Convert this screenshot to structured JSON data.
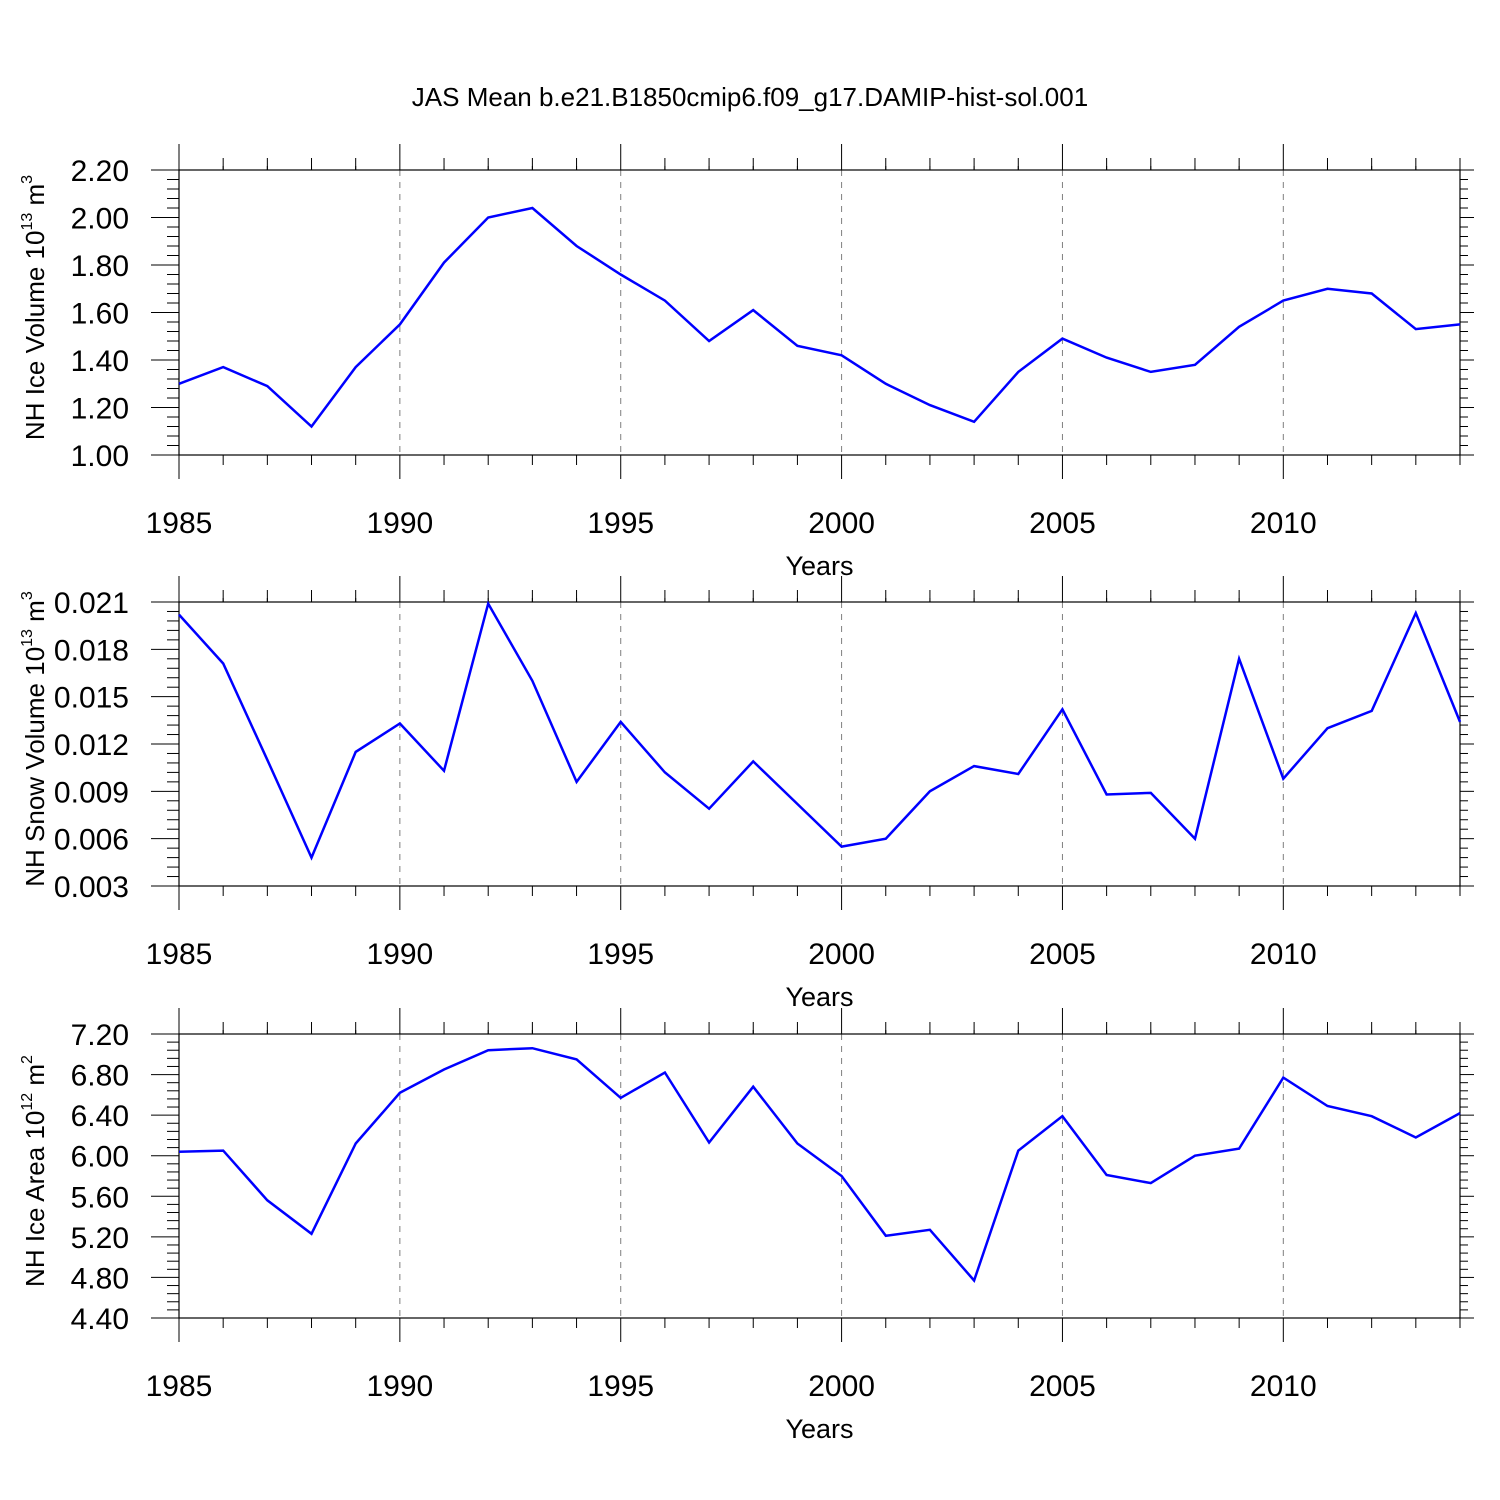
{
  "title": "JAS Mean b.e21.B1850cmip6.f09_g17.DAMIP-hist-sol.001",
  "line_color": "#0000ff",
  "chart_data": [
    {
      "type": "line",
      "title": "",
      "xlabel": "Years",
      "ylabel": {
        "main": "NH Ice Volume 10",
        "exp": "13",
        "unit": " m",
        "unit_exp": "3"
      },
      "xlim": [
        1985,
        2014
      ],
      "ylim": [
        1.0,
        2.2
      ],
      "xticks": [
        "1985",
        "1990",
        "1995",
        "2000",
        "2005",
        "2010"
      ],
      "yticks": [
        "1.00",
        "1.20",
        "1.40",
        "1.60",
        "1.80",
        "2.00",
        "2.20"
      ],
      "grid": "dashed vertical at major x ticks",
      "x": [
        1985,
        1986,
        1987,
        1988,
        1989,
        1990,
        1991,
        1992,
        1993,
        1994,
        1995,
        1996,
        1997,
        1998,
        1999,
        2000,
        2001,
        2002,
        2003,
        2004,
        2005,
        2006,
        2007,
        2008,
        2009,
        2010,
        2011,
        2012,
        2013,
        2014
      ],
      "series": [
        {
          "name": "NH Ice Volume",
          "values": [
            1.3,
            1.37,
            1.29,
            1.12,
            1.37,
            1.55,
            1.81,
            2.0,
            2.04,
            1.88,
            1.76,
            1.65,
            1.48,
            1.61,
            1.46,
            1.42,
            1.3,
            1.21,
            1.14,
            1.35,
            1.49,
            1.41,
            1.35,
            1.38,
            1.54,
            1.65,
            1.7,
            1.68,
            1.53,
            1.55
          ]
        }
      ]
    },
    {
      "type": "line",
      "title": "",
      "xlabel": "Years",
      "ylabel": {
        "main": "NH Snow Volume 10",
        "exp": "13",
        "unit": " m",
        "unit_exp": "3"
      },
      "xlim": [
        1985,
        2014
      ],
      "ylim": [
        0.003,
        0.021
      ],
      "xticks": [
        "1985",
        "1990",
        "1995",
        "2000",
        "2005",
        "2010"
      ],
      "yticks": [
        "0.003",
        "0.006",
        "0.009",
        "0.012",
        "0.015",
        "0.018",
        "0.021"
      ],
      "grid": "dashed vertical at major x ticks",
      "x": [
        1985,
        1986,
        1987,
        1988,
        1989,
        1990,
        1991,
        1992,
        1993,
        1994,
        1995,
        1996,
        1997,
        1998,
        1999,
        2000,
        2001,
        2002,
        2003,
        2004,
        2005,
        2006,
        2007,
        2008,
        2009,
        2010,
        2011,
        2012,
        2013,
        2014
      ],
      "series": [
        {
          "name": "NH Snow Volume",
          "values": [
            0.0202,
            0.0171,
            0.011,
            0.0048,
            0.0115,
            0.0133,
            0.0103,
            0.0209,
            0.016,
            0.0096,
            0.0134,
            0.0102,
            0.0079,
            0.0109,
            0.0082,
            0.0055,
            0.006,
            0.009,
            0.0106,
            0.0101,
            0.0142,
            0.0088,
            0.0089,
            0.006,
            0.0174,
            0.0098,
            0.013,
            0.0141,
            0.0203,
            0.0134
          ]
        }
      ]
    },
    {
      "type": "line",
      "title": "",
      "xlabel": "Years",
      "ylabel": {
        "main": "NH Ice Area 10",
        "exp": "12",
        "unit": " m",
        "unit_exp": "2"
      },
      "xlim": [
        1985,
        2014
      ],
      "ylim": [
        4.4,
        7.2
      ],
      "xticks": [
        "1985",
        "1990",
        "1995",
        "2000",
        "2005",
        "2010"
      ],
      "yticks": [
        "4.40",
        "4.80",
        "5.20",
        "5.60",
        "6.00",
        "6.40",
        "6.80",
        "7.20"
      ],
      "grid": "dashed vertical at major x ticks",
      "x": [
        1985,
        1986,
        1987,
        1988,
        1989,
        1990,
        1991,
        1992,
        1993,
        1994,
        1995,
        1996,
        1997,
        1998,
        1999,
        2000,
        2001,
        2002,
        2003,
        2004,
        2005,
        2006,
        2007,
        2008,
        2009,
        2010,
        2011,
        2012,
        2013,
        2014
      ],
      "series": [
        {
          "name": "NH Ice Area",
          "values": [
            6.04,
            6.05,
            5.56,
            5.23,
            6.12,
            6.62,
            6.85,
            7.04,
            7.06,
            6.95,
            6.57,
            6.82,
            6.13,
            6.68,
            6.12,
            5.8,
            5.21,
            5.27,
            4.77,
            6.05,
            6.39,
            5.81,
            5.73,
            6.0,
            6.07,
            6.77,
            6.49,
            6.39,
            6.18,
            6.42
          ]
        }
      ]
    }
  ]
}
